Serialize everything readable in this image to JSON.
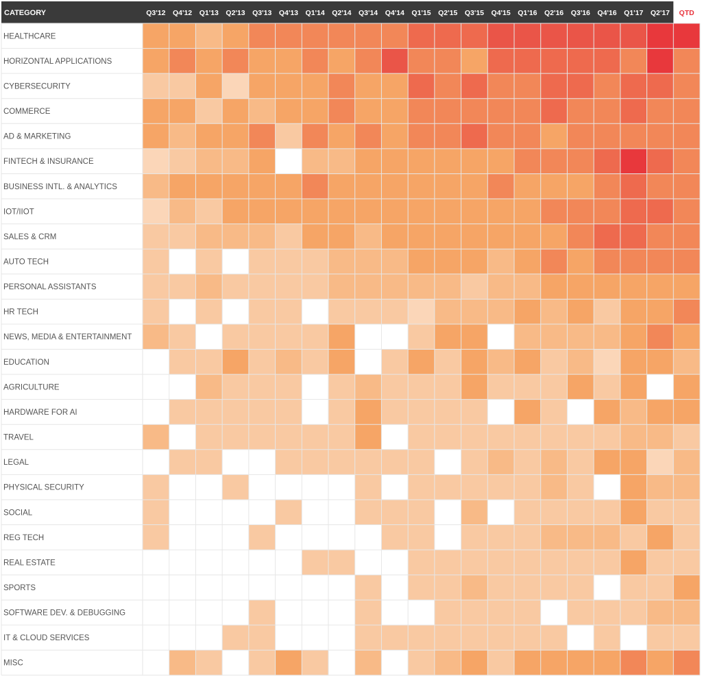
{
  "chart_data": {
    "type": "heatmap",
    "title": "",
    "corner_label": "CATEGORY",
    "columns": [
      "Q3'12",
      "Q4'12",
      "Q1'13",
      "Q2'13",
      "Q3'13",
      "Q4'13",
      "Q1'14",
      "Q2'14",
      "Q3'14",
      "Q4'14",
      "Q1'15",
      "Q2'15",
      "Q3'15",
      "Q4'15",
      "Q1'16",
      "Q2'16",
      "Q3'16",
      "Q4'16",
      "Q1'17",
      "Q2'17",
      "QTD"
    ],
    "highlight_column": "QTD",
    "rows": [
      "HEALTHCARE",
      "HORIZONTAL APPLICATIONS",
      "CYBERSECURITY",
      "COMMERCE",
      "AD & MARKETING",
      "FINTECH & INSURANCE",
      "BUSINESS INTL. & ANALYTICS",
      "IOT/IIOT",
      "SALES & CRM",
      "AUTO TECH",
      "PERSONAL ASSISTANTS",
      "HR TECH",
      "NEWS, MEDIA & ENTERTAINMENT",
      "EDUCATION",
      "AGRICULTURE",
      "HARDWARE FOR AI",
      "TRAVEL",
      "LEGAL",
      "PHYSICAL SECURITY",
      "SOCIAL",
      "REG TECH",
      "REAL ESTATE",
      "SPORTS",
      "SOFTWARE DEV. & DEBUGGING",
      "IT & CLOUD SERVICES",
      "MISC"
    ],
    "scale": {
      "min": 0,
      "max": 8,
      "note": "0 = no activity (white); higher = more deals (light peach to red)"
    },
    "values": [
      [
        4,
        4,
        3,
        4,
        5,
        5,
        5,
        5,
        5,
        5,
        6,
        6,
        6,
        7,
        7,
        7,
        7,
        7,
        7,
        8,
        8
      ],
      [
        4,
        5,
        4,
        5,
        4,
        4,
        5,
        4,
        5,
        7,
        5,
        5,
        4,
        6,
        6,
        6,
        6,
        6,
        5,
        8,
        5
      ],
      [
        2,
        2,
        4,
        1,
        4,
        4,
        4,
        5,
        4,
        4,
        6,
        5,
        6,
        5,
        5,
        6,
        6,
        5,
        6,
        6,
        5
      ],
      [
        4,
        4,
        2,
        4,
        3,
        4,
        4,
        5,
        4,
        4,
        5,
        5,
        5,
        5,
        5,
        6,
        5,
        5,
        6,
        5,
        5
      ],
      [
        4,
        3,
        4,
        4,
        5,
        2,
        5,
        4,
        5,
        4,
        5,
        5,
        6,
        5,
        5,
        4,
        5,
        5,
        5,
        5,
        5
      ],
      [
        1,
        2,
        3,
        3,
        4,
        0,
        3,
        3,
        4,
        4,
        4,
        4,
        4,
        4,
        5,
        5,
        5,
        6,
        8,
        6,
        5
      ],
      [
        3,
        4,
        4,
        4,
        4,
        4,
        5,
        4,
        4,
        4,
        4,
        4,
        4,
        5,
        4,
        4,
        4,
        5,
        6,
        5,
        5
      ],
      [
        1,
        3,
        2,
        4,
        4,
        4,
        4,
        4,
        4,
        4,
        4,
        4,
        4,
        4,
        4,
        5,
        5,
        5,
        6,
        6,
        5
      ],
      [
        2,
        2,
        3,
        3,
        3,
        2,
        4,
        4,
        3,
        4,
        4,
        4,
        4,
        4,
        4,
        4,
        5,
        6,
        6,
        5,
        5
      ],
      [
        2,
        0,
        2,
        0,
        2,
        2,
        2,
        3,
        3,
        3,
        4,
        4,
        4,
        3,
        4,
        5,
        4,
        5,
        5,
        5,
        5
      ],
      [
        2,
        2,
        3,
        2,
        2,
        2,
        2,
        3,
        3,
        3,
        3,
        3,
        2,
        3,
        3,
        4,
        4,
        4,
        4,
        4,
        4
      ],
      [
        2,
        0,
        2,
        0,
        2,
        2,
        0,
        2,
        2,
        2,
        1,
        3,
        3,
        3,
        4,
        3,
        4,
        2,
        4,
        4,
        5
      ],
      [
        3,
        2,
        0,
        2,
        2,
        2,
        2,
        4,
        0,
        0,
        2,
        4,
        4,
        0,
        3,
        3,
        3,
        3,
        4,
        5,
        4
      ],
      [
        0,
        2,
        2,
        4,
        2,
        3,
        2,
        4,
        0,
        2,
        4,
        2,
        4,
        3,
        4,
        2,
        3,
        1,
        4,
        4,
        3
      ],
      [
        0,
        0,
        3,
        2,
        2,
        2,
        0,
        2,
        3,
        2,
        2,
        2,
        4,
        2,
        2,
        2,
        4,
        2,
        4,
        0,
        4
      ],
      [
        0,
        2,
        2,
        2,
        2,
        2,
        0,
        2,
        4,
        2,
        2,
        2,
        2,
        0,
        4,
        2,
        0,
        4,
        3,
        4,
        4
      ],
      [
        3,
        0,
        2,
        2,
        2,
        2,
        2,
        2,
        4,
        0,
        2,
        2,
        2,
        2,
        2,
        2,
        2,
        2,
        3,
        3,
        2
      ],
      [
        0,
        2,
        2,
        0,
        0,
        2,
        2,
        2,
        2,
        2,
        2,
        0,
        2,
        3,
        2,
        3,
        2,
        4,
        4,
        1,
        3
      ],
      [
        2,
        0,
        0,
        2,
        0,
        0,
        0,
        0,
        2,
        0,
        2,
        2,
        2,
        2,
        2,
        3,
        2,
        0,
        4,
        3,
        3
      ],
      [
        2,
        0,
        0,
        0,
        0,
        2,
        0,
        0,
        2,
        2,
        2,
        0,
        3,
        0,
        2,
        2,
        2,
        2,
        4,
        2,
        2
      ],
      [
        2,
        0,
        0,
        0,
        2,
        0,
        0,
        0,
        0,
        2,
        2,
        0,
        2,
        2,
        2,
        3,
        3,
        3,
        2,
        4,
        2
      ],
      [
        0,
        0,
        0,
        0,
        0,
        0,
        2,
        2,
        0,
        0,
        2,
        2,
        2,
        2,
        2,
        2,
        2,
        2,
        4,
        2,
        2
      ],
      [
        0,
        0,
        0,
        0,
        0,
        0,
        0,
        0,
        2,
        0,
        2,
        2,
        3,
        2,
        2,
        2,
        2,
        0,
        2,
        2,
        4
      ],
      [
        0,
        0,
        0,
        0,
        2,
        0,
        0,
        0,
        2,
        0,
        0,
        2,
        2,
        2,
        2,
        0,
        2,
        2,
        2,
        3,
        3
      ],
      [
        0,
        0,
        0,
        2,
        2,
        0,
        0,
        0,
        2,
        2,
        2,
        2,
        2,
        2,
        2,
        2,
        0,
        2,
        0,
        2,
        2
      ],
      [
        0,
        3,
        2,
        0,
        2,
        4,
        2,
        0,
        3,
        0,
        2,
        3,
        4,
        2,
        4,
        4,
        4,
        4,
        5,
        4,
        5
      ]
    ]
  },
  "colors": {
    "header_background": "#3a3a3a",
    "header_text": "#ffffff",
    "highlight_text": "#e8333c",
    "row_label_text": "#555555",
    "grid_line": "#e6e6e6",
    "scale": [
      "#ffffff",
      "#fbd6b8",
      "#f9c9a2",
      "#f8ba87",
      "#f6a566",
      "#f28758",
      "#ee6a4e",
      "#ea5548",
      "#e8383c"
    ]
  }
}
